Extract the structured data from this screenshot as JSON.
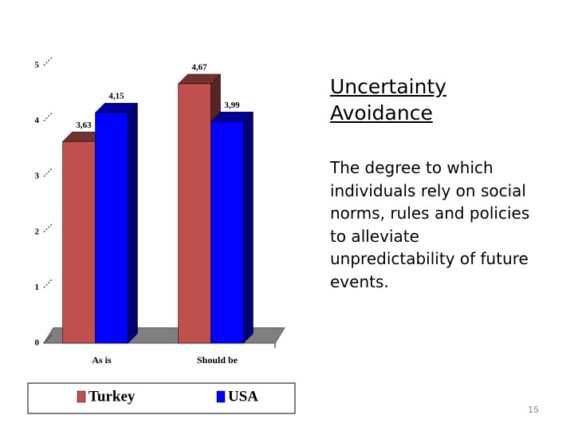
{
  "chart_data": {
    "type": "bar",
    "categories": [
      "As is",
      "Should be"
    ],
    "series": [
      {
        "name": "Turkey",
        "color": "#c0504d",
        "values": [
          3.63,
          4.67
        ],
        "value_labels": [
          "3,63",
          "4,67"
        ]
      },
      {
        "name": "USA",
        "color": "#0000ff",
        "values": [
          4.15,
          3.99
        ],
        "value_labels": [
          "4,15",
          "3,99"
        ]
      }
    ],
    "ylim": [
      0,
      5
    ],
    "yticks": [
      0,
      1,
      2,
      3,
      4,
      5
    ],
    "legend": "bottom"
  },
  "slide": {
    "heading": "Uncertainty Avoidance",
    "body": "The degree to which individuals rely on social norms, rules and policies to alleviate unpredictability of future events.",
    "page_number": "15"
  }
}
